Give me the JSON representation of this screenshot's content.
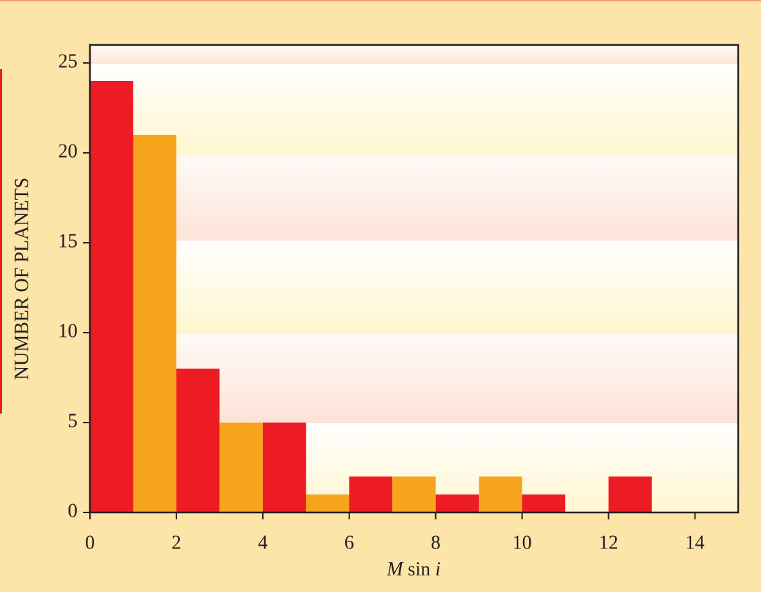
{
  "chart_data": {
    "type": "histogram",
    "xlabel": [
      "M",
      "sin",
      "i"
    ],
    "ylabel": "NUMBER OF PLANETS",
    "bins": [
      0,
      1,
      2,
      3,
      4,
      5,
      6,
      7,
      8,
      9,
      10,
      11,
      12,
      13,
      14,
      15
    ],
    "values": [
      24,
      21,
      8,
      5,
      5,
      1,
      2,
      2,
      1,
      2,
      1,
      0,
      2,
      0,
      0
    ],
    "colors": [
      "#ed1c24",
      "#f7a51c"
    ],
    "xlim": [
      0,
      15
    ],
    "xticks": [
      0,
      2,
      4,
      6,
      8,
      10,
      12,
      14
    ],
    "ylim": [
      0,
      26
    ],
    "yticks": [
      0,
      5,
      10,
      15,
      20,
      25
    ]
  }
}
